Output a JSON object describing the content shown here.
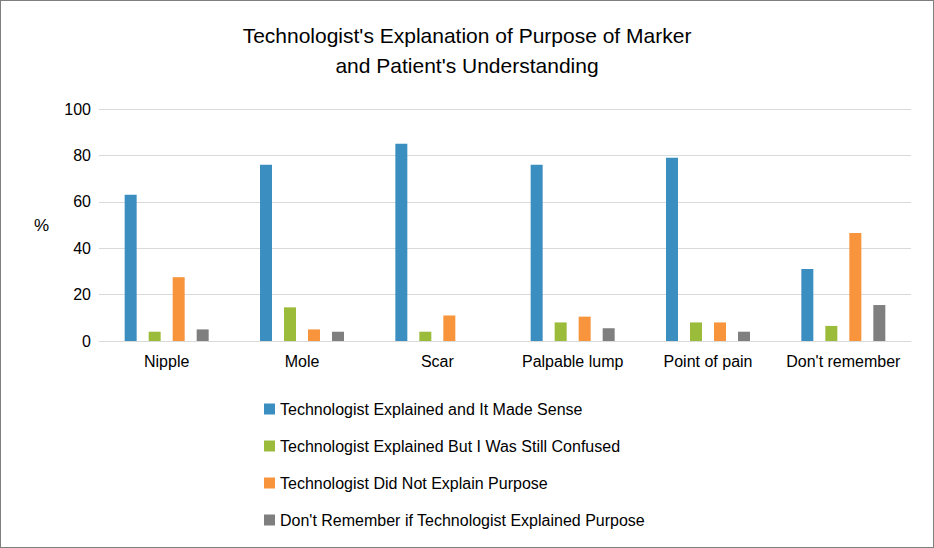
{
  "chart_data": {
    "type": "bar",
    "title": "Technologist's Explanation of Purpose of Marker\nand Patient's Understanding",
    "ylabel": "%",
    "categories": [
      "Nipple",
      "Mole",
      "Scar",
      "Palpable lump",
      "Point of pain",
      "Don't remember"
    ],
    "series": [
      {
        "name": "Technologist Explained and It Made Sense",
        "color": "#3a8fc0",
        "values": [
          63,
          76,
          85,
          76,
          79,
          31
        ]
      },
      {
        "name": "Technologist Explained But I Was Still Confused",
        "color": "#9bbb3b",
        "values": [
          4,
          14.5,
          4,
          8,
          8,
          6.5
        ]
      },
      {
        "name": "Technologist Did Not Explain Purpose",
        "color": "#f7943c",
        "values": [
          27.5,
          5,
          11,
          10.5,
          8,
          46.5
        ]
      },
      {
        "name": "Don't Remember if Technologist Explained Purpose",
        "color": "#7f7f7f",
        "values": [
          5,
          4,
          0,
          5.5,
          4,
          15.5
        ]
      }
    ],
    "ylim": [
      0,
      100
    ],
    "yticks": [
      0,
      20,
      40,
      60,
      80,
      100
    ],
    "grid": true,
    "legend": "bottom"
  }
}
